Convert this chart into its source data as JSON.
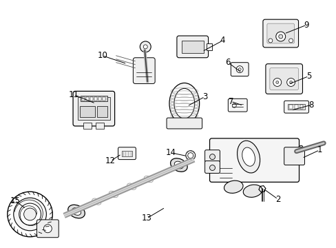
{
  "bg_color": "#ffffff",
  "line_color": "#000000",
  "text_color": "#000000",
  "label_fontsize": 8.5
}
